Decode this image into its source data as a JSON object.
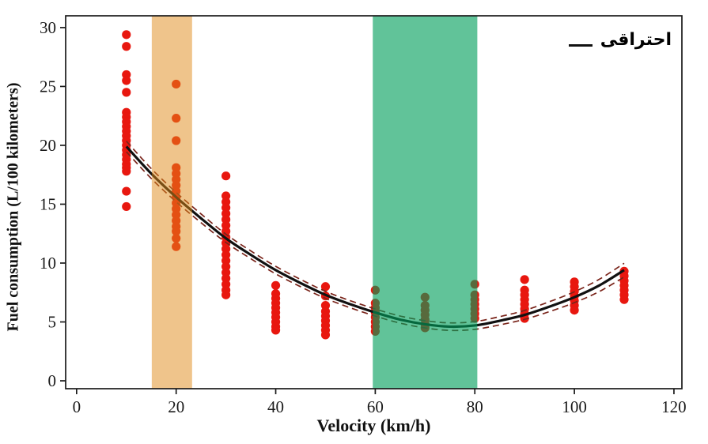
{
  "legend": {
    "label": "احتراقی"
  },
  "chart_data": {
    "type": "scatter",
    "xlabel": "Velocity (km/h)",
    "ylabel": "Fuel consumption (L/100 kilometers)",
    "xlim": [
      -2.2,
      121.6
    ],
    "ylim": [
      -0.67,
      31.0
    ],
    "xticks": [
      0,
      20,
      40,
      60,
      80,
      100,
      120
    ],
    "yticks": [
      0,
      5,
      10,
      15,
      20,
      25,
      30
    ],
    "grid": false,
    "legend_position": "top-right",
    "bands": [
      {
        "name": "low-speed-band",
        "x0": 15.1,
        "x1": 23.2,
        "color": "rgba(224,138,24,0.50)"
      },
      {
        "name": "optimal-speed-band",
        "x0": 59.5,
        "x1": 80.5,
        "color": "rgba(0,158,90,0.62)"
      }
    ],
    "points": [
      {
        "v": 10,
        "fc": [
          29.4,
          28.4,
          26.0,
          25.5,
          24.5,
          22.8,
          22.4,
          22.0,
          21.6,
          21.2,
          20.8,
          20.4,
          20.0,
          19.6,
          19.2,
          18.8,
          18.4,
          18.1,
          17.8,
          16.1,
          14.8
        ]
      },
      {
        "v": 20,
        "fc": [
          25.2,
          22.3,
          20.4,
          18.1,
          17.6,
          17.1,
          16.6,
          16.1,
          15.6,
          15.1,
          14.6,
          14.1,
          13.6,
          13.1,
          12.7,
          12.1,
          11.4
        ]
      },
      {
        "v": 30,
        "fc": [
          17.4,
          15.7,
          15.2,
          14.7,
          14.2,
          13.7,
          13.2,
          12.7,
          12.2,
          11.7,
          11.2,
          10.7,
          10.2,
          9.7,
          9.2,
          8.7,
          8.2,
          7.7,
          7.3
        ]
      },
      {
        "v": 40,
        "fc": [
          8.1,
          7.4,
          7.0,
          6.6,
          6.2,
          5.8,
          5.4,
          5.0,
          4.6,
          4.3
        ]
      },
      {
        "v": 50,
        "fc": [
          8.0,
          7.2,
          6.4,
          5.9,
          5.5,
          5.1,
          4.7,
          4.3,
          3.9
        ]
      },
      {
        "v": 60,
        "fc": [
          7.7,
          6.6,
          6.2,
          5.8,
          5.4,
          5.0,
          4.6,
          4.2
        ]
      },
      {
        "v": 70,
        "fc": [
          7.1,
          6.4,
          6.0,
          5.6,
          5.2,
          4.8,
          4.5
        ]
      },
      {
        "v": 80,
        "fc": [
          8.2,
          7.3,
          6.9,
          6.5,
          6.1,
          5.7,
          5.3
        ]
      },
      {
        "v": 90,
        "fc": [
          8.6,
          7.7,
          7.3,
          6.9,
          6.5,
          6.1,
          5.7,
          5.3
        ]
      },
      {
        "v": 100,
        "fc": [
          8.4,
          8.0,
          7.6,
          7.2,
          6.8,
          6.4,
          6.0
        ]
      },
      {
        "v": 110,
        "fc": [
          9.3,
          8.9,
          8.5,
          8.1,
          7.7,
          7.3,
          6.9
        ]
      }
    ],
    "fit_curve": {
      "v": [
        10,
        15,
        20,
        25,
        30,
        35,
        40,
        45,
        50,
        55,
        60,
        65,
        70,
        75,
        80,
        85,
        90,
        95,
        100,
        105,
        110
      ],
      "fc": [
        19.9,
        17.6,
        15.6,
        13.8,
        12.1,
        10.7,
        9.4,
        8.3,
        7.3,
        6.5,
        5.8,
        5.2,
        4.8,
        4.6,
        4.7,
        5.1,
        5.6,
        6.3,
        7.1,
        8.1,
        9.4
      ]
    },
    "ci_offset": [
      0.45,
      0.42,
      0.4,
      0.37,
      0.35,
      0.33,
      0.32,
      0.31,
      0.3,
      0.3,
      0.3,
      0.3,
      0.31,
      0.32,
      0.33,
      0.35,
      0.38,
      0.42,
      0.46,
      0.52,
      0.58
    ],
    "colors": {
      "point": "#e8170f",
      "fit_curve": "#111111",
      "ci": "#7a241a",
      "frame": "#1a1a1a",
      "tick_text": "#1a1a1a"
    }
  }
}
